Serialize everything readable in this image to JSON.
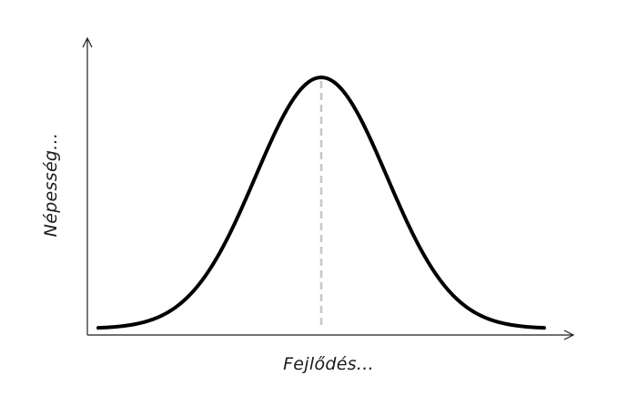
{
  "chart_data": {
    "type": "line",
    "title": "",
    "xlabel": "Fejlődés...",
    "ylabel": "Népesség...",
    "distribution": "normal",
    "mean": 0,
    "std": 1,
    "x_range": [
      -3.4,
      3.4
    ],
    "y_range": [
      0,
      1
    ],
    "peak_marker": {
      "x": 0,
      "style": "dashed",
      "color": "#c8c8c8"
    },
    "grid": false,
    "ticks": false,
    "legend": false,
    "colors": {
      "curve": "#000000",
      "axes": "#1f1f1f",
      "label": "#1a1a1a"
    }
  }
}
